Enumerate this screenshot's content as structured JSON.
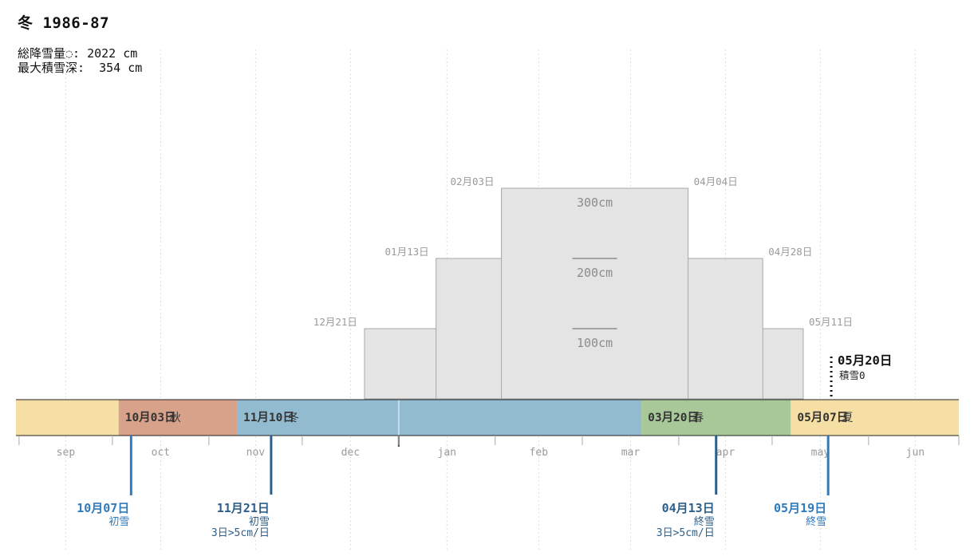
{
  "header": {
    "title": "冬 1986-87",
    "total_snowfall": "総降雪量◌: 2022 cm",
    "max_depth": "最大積雪深:  354 cm"
  },
  "chart_data": {
    "type": "area",
    "season_year": "1986-87",
    "x_range": [
      "1986-08-31",
      "1987-06-30"
    ],
    "months": [
      "sep",
      "oct",
      "nov",
      "dec",
      "jan",
      "feb",
      "mar",
      "apr",
      "may",
      "jun"
    ],
    "snow_depth_steps": [
      {
        "start": "1986-12-21",
        "end": "1987-05-11",
        "level_cm": 100,
        "start_label": "12月21日",
        "end_label": "05月11日"
      },
      {
        "start": "1987-01-13",
        "end": "1987-04-28",
        "level_cm": 200,
        "start_label": "01月13日",
        "end_label": "04月28日"
      },
      {
        "start": "1987-02-03",
        "end": "1987-04-04",
        "level_cm": 300,
        "start_label": "02月03日",
        "end_label": "04月04日"
      }
    ],
    "depth_scale": [
      "300cm",
      "200cm",
      "100cm"
    ],
    "seasons": [
      {
        "start": "1986-08-31",
        "end": "1986-10-03",
        "color": "#f5dfa5",
        "date_label": "",
        "name": ""
      },
      {
        "start": "1986-10-03",
        "end": "1986-11-10",
        "color": "#d7a18a",
        "date_label": "10月03日",
        "name": "秋"
      },
      {
        "start": "1986-11-10",
        "end": "1987-03-20",
        "color": "#93bbd0",
        "date_label": "11月10日",
        "name": "冬"
      },
      {
        "start": "1987-03-20",
        "end": "1987-05-07",
        "color": "#a9c899",
        "date_label": "03月20日",
        "name": "春"
      },
      {
        "start": "1987-05-07",
        "end": "1987-06-30",
        "color": "#f5dfa5",
        "date_label": "05月07日",
        "name": "夏"
      }
    ],
    "year_boundary": "1987-01-01",
    "events": [
      {
        "date": "1986-10-07",
        "label": "10月07日",
        "desc": "初雪",
        "detail": "",
        "color": "#2f7bbd",
        "line_length": "long"
      },
      {
        "date": "1986-11-21",
        "label": "11月21日",
        "desc": "初雪",
        "detail": "3日>5cm/日",
        "color": "#2d5f8a",
        "line_length": "short"
      },
      {
        "date": "1987-04-13",
        "label": "04月13日",
        "desc": "終雪",
        "detail": "3日>5cm/日",
        "color": "#2d5f8a",
        "line_length": "short"
      },
      {
        "date": "1987-05-19",
        "label": "05月19日",
        "desc": "終雪",
        "detail": "",
        "color": "#2f7bbd",
        "line_length": "long"
      }
    ],
    "snow_zero": {
      "date": "1987-05-20",
      "label": "05月20日",
      "desc": "積雪0"
    }
  }
}
